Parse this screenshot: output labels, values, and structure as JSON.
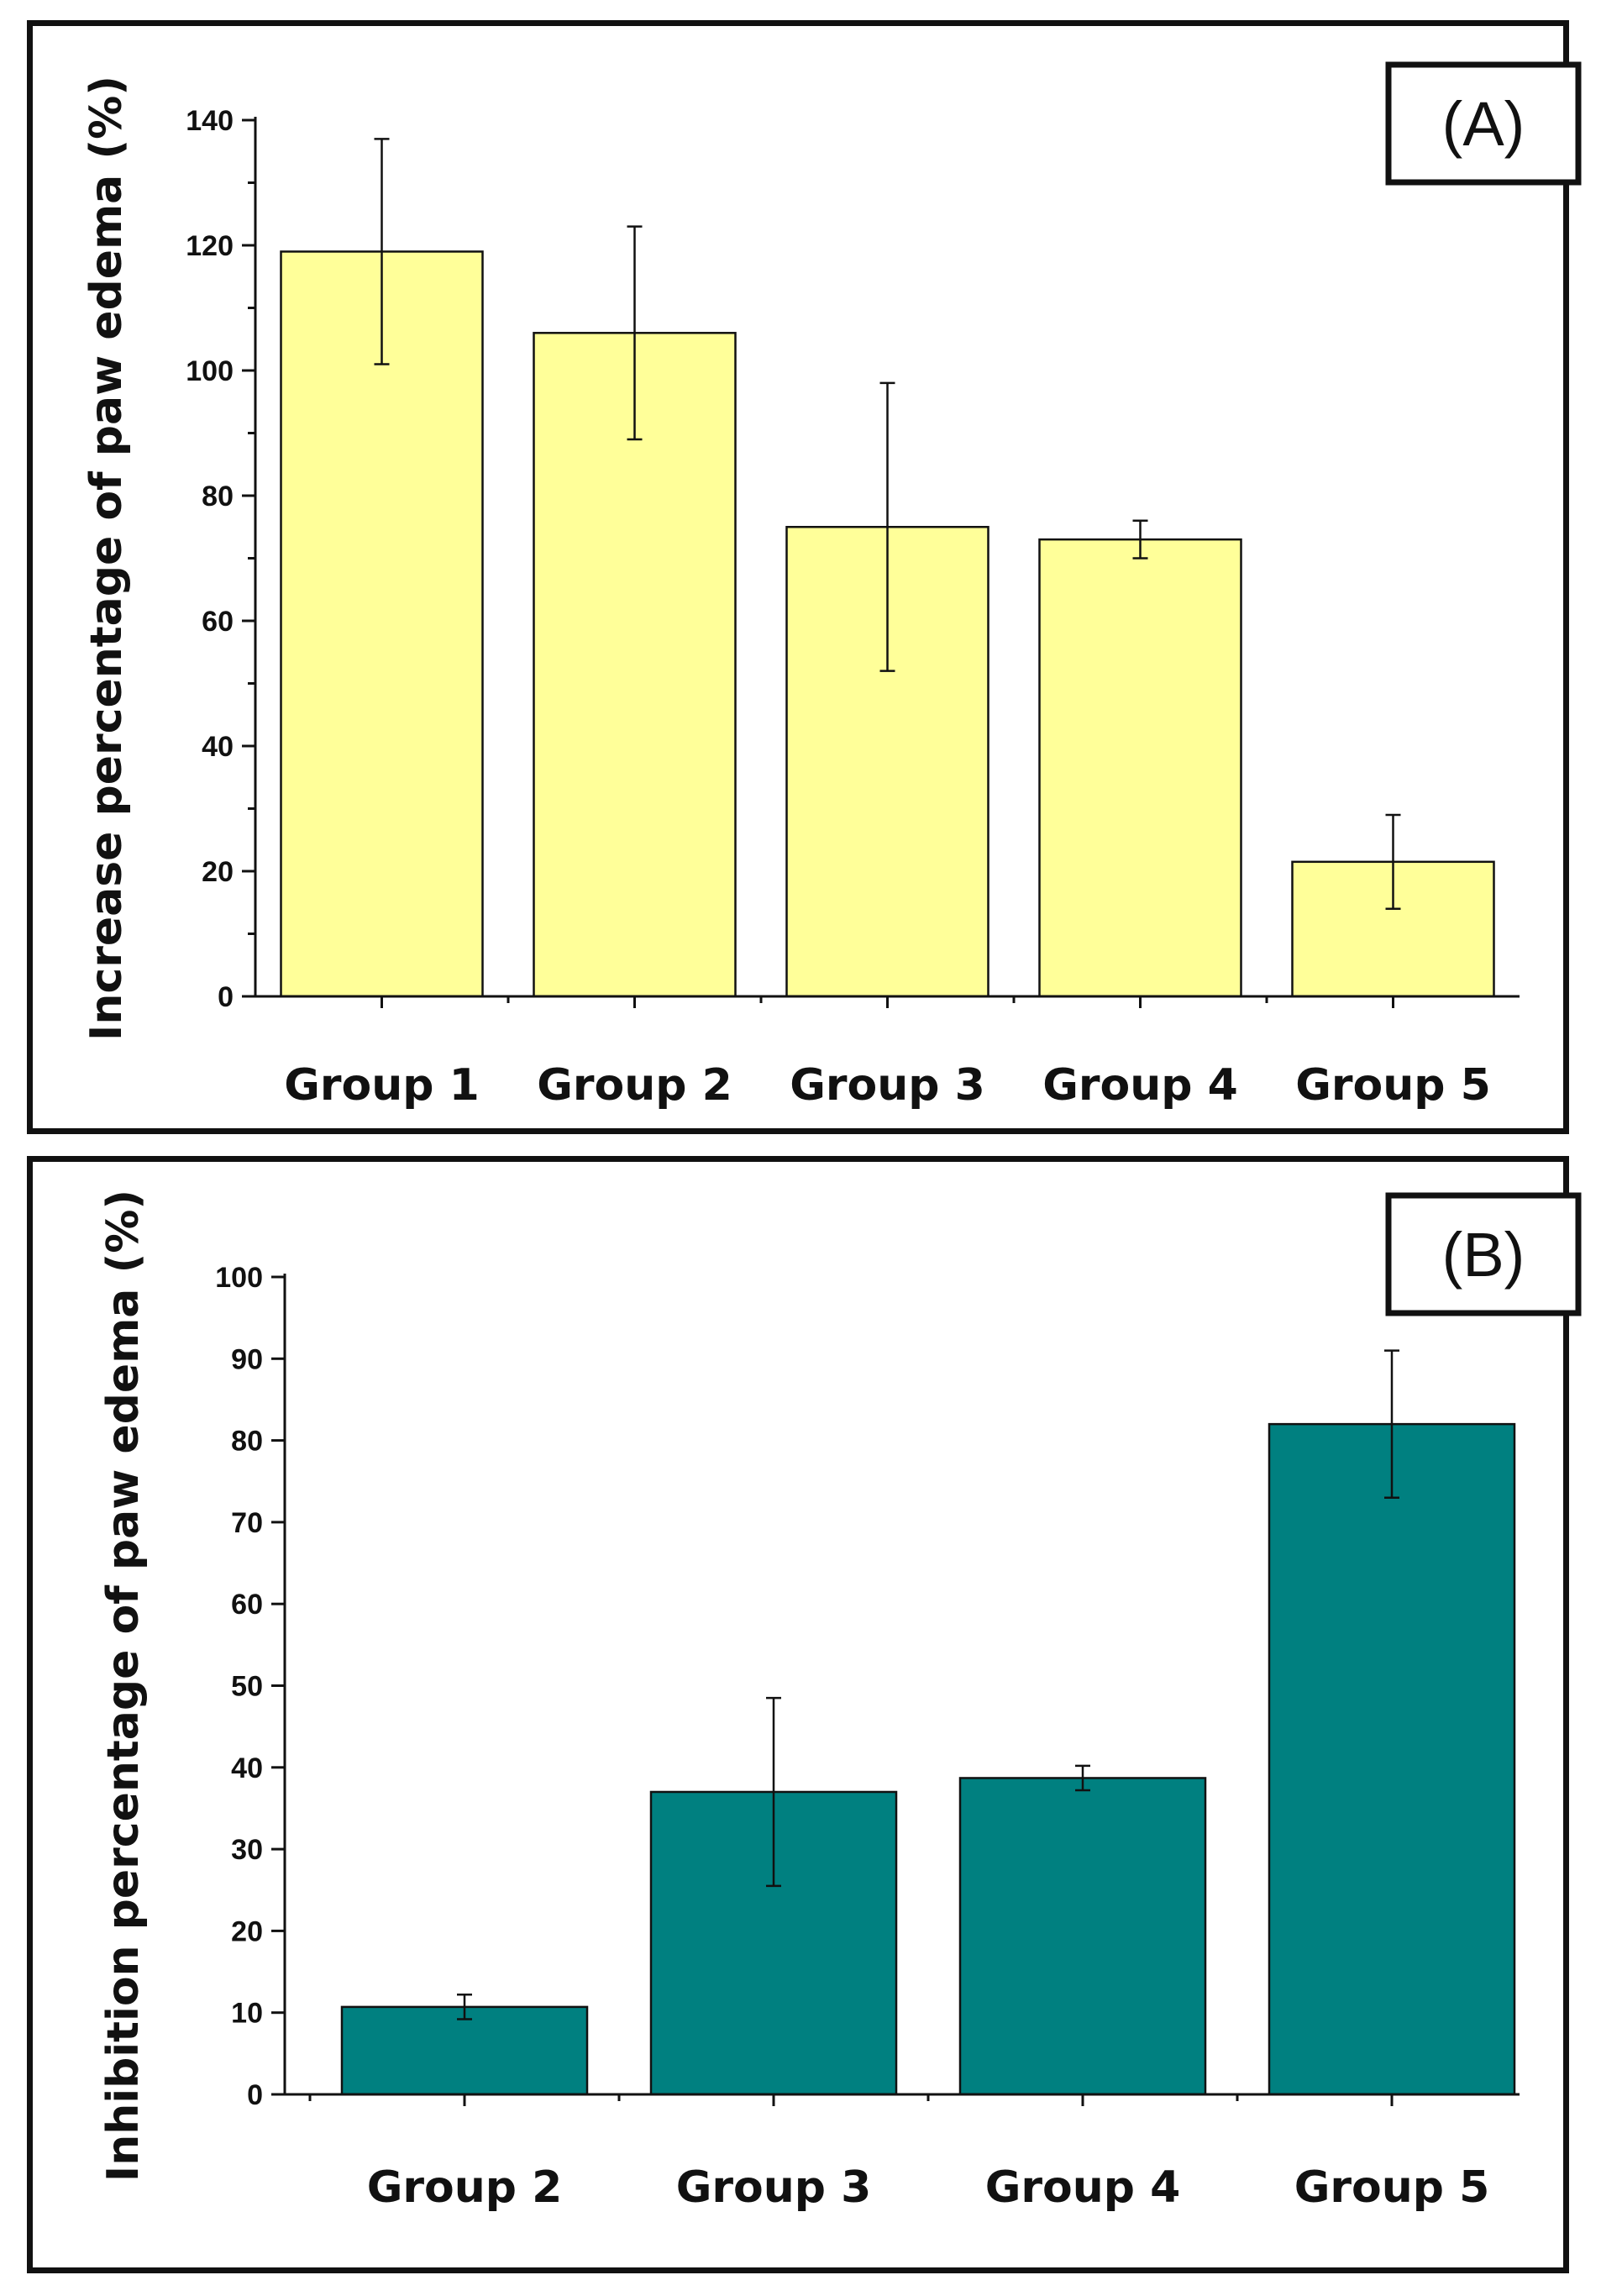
{
  "chart_data": [
    {
      "type": "bar",
      "panel_label": "(A)",
      "title": "",
      "xlabel": "",
      "ylabel": "Increase percentage of paw edema (%)",
      "categories": [
        "Group 1",
        "Group 2",
        "Group 3",
        "Group 4",
        "Group 5"
      ],
      "values": [
        119,
        106,
        75,
        73,
        21.5
      ],
      "error": [
        18,
        17,
        23,
        3,
        7.5
      ],
      "ylim": [
        0,
        140
      ],
      "yticks": [
        0,
        20,
        40,
        60,
        80,
        100,
        120,
        140
      ],
      "yticks_labels": [
        "0",
        "20",
        "40",
        "60",
        "80",
        "100",
        "120",
        "140"
      ],
      "bar_color": "#ffff99",
      "grid": false
    },
    {
      "type": "bar",
      "panel_label": "(B)",
      "title": "",
      "xlabel": "",
      "ylabel": "Inhibition percentage of paw edema (%)",
      "categories": [
        "Group 2",
        "Group 3",
        "Group 4",
        "Group 5"
      ],
      "values": [
        10.7,
        37,
        38.7,
        82
      ],
      "error": [
        1.5,
        11.5,
        1.5,
        9
      ],
      "ylim": [
        0,
        100
      ],
      "yticks": [
        0,
        10,
        20,
        30,
        40,
        50,
        60,
        70,
        80,
        90,
        100
      ],
      "yticks_labels": [
        "0",
        "10",
        "20",
        "30",
        "40",
        "50",
        "60",
        "70",
        "80",
        "90",
        "100"
      ],
      "bar_color": "#008080",
      "grid": false
    }
  ]
}
